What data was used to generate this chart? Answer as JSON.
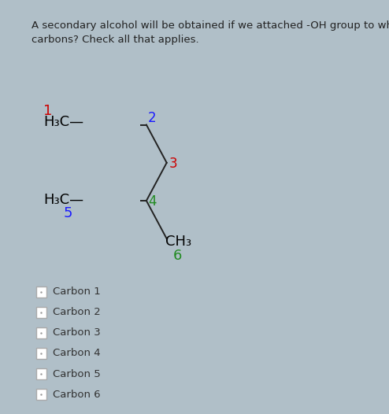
{
  "title_text": "A secondary alcohol will be obtained if we attached -OH group to which\ncarbons? Check all that applies.",
  "title_fontsize": 9.5,
  "title_color": "#222222",
  "bg_color": "#b0bfc8",
  "panel_color": "#ffffff",
  "molecule": {
    "num1_color": "#cc0000",
    "num2_color": "#1a1aff",
    "num3_color": "#cc0000",
    "num4_color": "#228B22",
    "num5_color": "#1a1aff",
    "num6_color": "#228B22"
  },
  "checkboxes": [
    {
      "label": "Carbon 1"
    },
    {
      "label": "Carbon 2"
    },
    {
      "label": "Carbon 3"
    },
    {
      "label": "Carbon 4"
    },
    {
      "label": "Carbon 5"
    },
    {
      "label": "Carbon 6"
    }
  ],
  "checkbox_fontsize": 9.5,
  "checkbox_text_color": "#333333",
  "checkbox_edge_color": "#aaaaaa",
  "bond_color": "#222222",
  "bond_lw": 1.4
}
